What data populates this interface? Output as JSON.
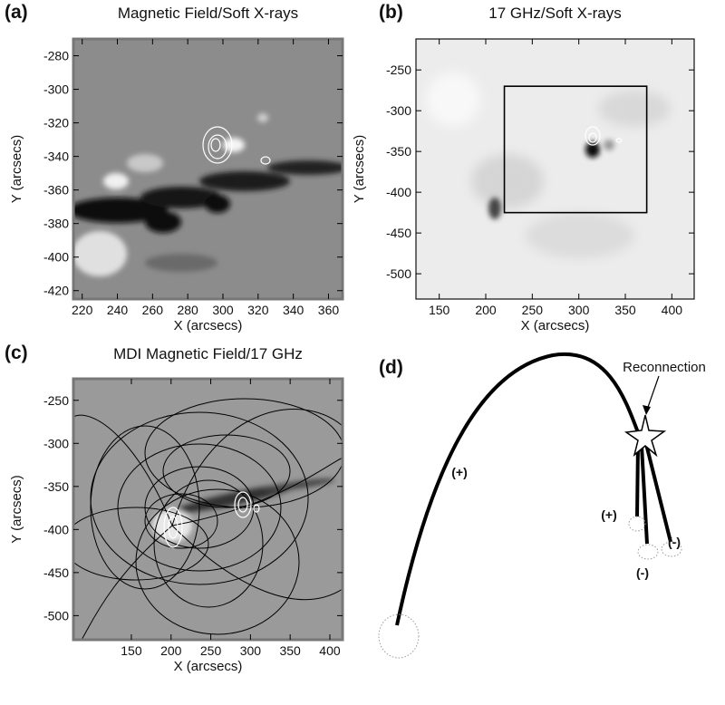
{
  "panels": [
    {
      "label": "(a)",
      "title": "Magnetic Field/Soft X-rays",
      "xlabel": "X (arcsecs)",
      "ylabel": "Y (arcsecs)",
      "xlim": [
        215,
        368
      ],
      "ylim": [
        -425,
        -270
      ],
      "xticks": [
        220,
        240,
        260,
        280,
        300,
        320,
        340,
        360
      ],
      "yticks": [
        -280,
        -300,
        -320,
        -340,
        -360,
        -380,
        -400,
        -420
      ]
    },
    {
      "label": "(b)",
      "title": "17 GHz/Soft X-rays",
      "xlabel": "X (arcsecs)",
      "ylabel": "Y (arcsecs)",
      "xlim": [
        125,
        424
      ],
      "ylim": [
        -531,
        -212
      ],
      "xticks": [
        150,
        200,
        250,
        300,
        350,
        400
      ],
      "yticks": [
        -250,
        -300,
        -350,
        -400,
        -450,
        -500
      ],
      "highlight_box": {
        "xlim": [
          220,
          373
        ],
        "ylim": [
          -425,
          -270
        ]
      }
    },
    {
      "label": "(c)",
      "title": "MDI Magnetic Field/17 GHz",
      "xlabel": "X (arcsecs)",
      "ylabel": "Y (arcsecs)",
      "xlim": [
        77,
        416
      ],
      "ylim": [
        -528,
        -225
      ],
      "xticks": [
        150,
        200,
        250,
        300,
        350,
        400
      ],
      "yticks": [
        -250,
        -300,
        -350,
        -400,
        -450,
        -500
      ]
    },
    {
      "label": "(d)",
      "annotation": "Reconnection",
      "polarities": [
        "(+)",
        "(+)",
        "(-)",
        "(-)"
      ]
    }
  ]
}
